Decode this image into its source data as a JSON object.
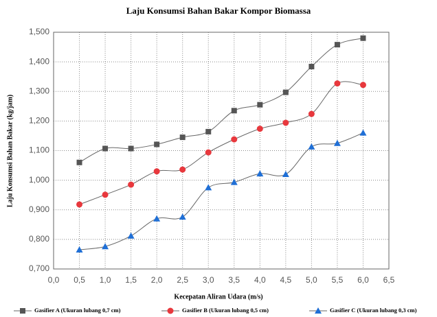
{
  "chart_data": {
    "type": "line",
    "title": "Laju Konsumsi Bahan Bakar Kompor Biomassa",
    "x_label": "Kecepatan Aliran Udara (m/s)",
    "y_label": "Laju Konsumsi Bahan Bakar (kg/jam)",
    "x": [
      0.5,
      1.0,
      1.5,
      2.0,
      2.5,
      3.0,
      3.5,
      4.0,
      4.5,
      5.0,
      5.5,
      6.0
    ],
    "series": [
      {
        "name": "Gasifier A (Ukuran lubang 0,7 cm)",
        "color": "#555555",
        "marker": "square",
        "values": [
          1.06,
          1.107,
          1.107,
          1.121,
          1.145,
          1.164,
          1.235,
          1.255,
          1.297,
          1.384,
          1.458,
          1.48
        ]
      },
      {
        "name": "Gasifier B (Ukuran lubang 0,5 cm)",
        "color": "#e8383d",
        "marker": "circle",
        "values": [
          0.918,
          0.951,
          0.985,
          1.03,
          1.036,
          1.094,
          1.138,
          1.174,
          1.194,
          1.224,
          1.327,
          1.322
        ]
      },
      {
        "name": "Gasifier C (Ukuran lubang 0,3 cm)",
        "color": "#1f6fd6",
        "marker": "triangle",
        "values": [
          0.765,
          0.776,
          0.812,
          0.87,
          0.876,
          0.975,
          0.993,
          1.022,
          1.02,
          1.113,
          1.125,
          1.16
        ]
      }
    ],
    "xlim": [
      0,
      6.5
    ],
    "xticks": [
      {
        "value": 0,
        "label": "0,0"
      },
      {
        "value": 0.5,
        "label": "0,5"
      },
      {
        "value": 1,
        "label": "1,0"
      },
      {
        "value": 1.5,
        "label": "1,5"
      },
      {
        "value": 2,
        "label": "2,0"
      },
      {
        "value": 2.5,
        "label": "2,5"
      },
      {
        "value": 3,
        "label": "3,0"
      },
      {
        "value": 3.5,
        "label": "3,5"
      },
      {
        "value": 4,
        "label": "4,0"
      },
      {
        "value": 4.5,
        "label": "4,5"
      },
      {
        "value": 5,
        "label": "5,0"
      },
      {
        "value": 5.5,
        "label": "5,5"
      },
      {
        "value": 6,
        "label": "6,0"
      },
      {
        "value": 6.5,
        "label": "6,5"
      }
    ],
    "ylim": [
      0.7,
      1.5
    ],
    "yticks": [
      {
        "value": 0.7,
        "label": "0,700"
      },
      {
        "value": 0.8,
        "label": "0,800"
      },
      {
        "value": 0.9,
        "label": "0,900"
      },
      {
        "value": 1.0,
        "label": "1,000"
      },
      {
        "value": 1.1,
        "label": "1,100"
      },
      {
        "value": 1.2,
        "label": "1,200"
      },
      {
        "value": 1.3,
        "label": "1,300"
      },
      {
        "value": 1.4,
        "label": "1,400"
      },
      {
        "value": 1.5,
        "label": "1,500"
      }
    ],
    "grid": true,
    "legend": "bottom"
  }
}
